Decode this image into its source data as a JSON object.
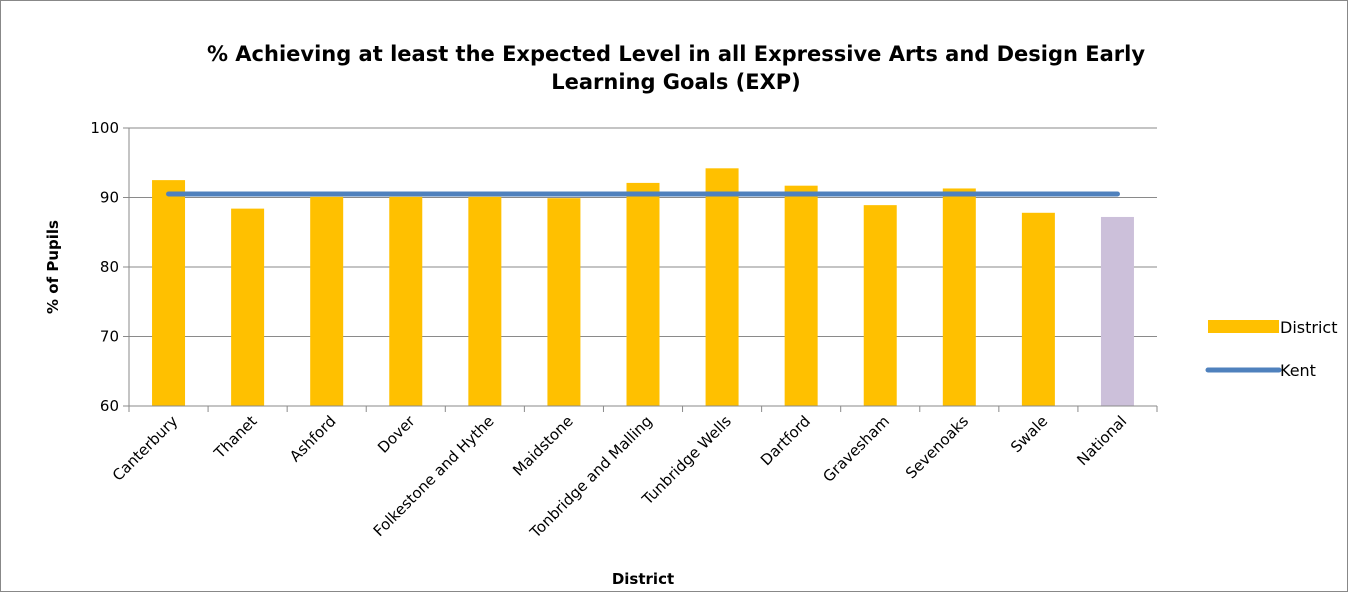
{
  "chart_data": {
    "type": "bar",
    "title_lines": [
      "% Achieving at least the Expected Level in all Expressive Arts and Design Early",
      "Learning Goals (EXP)"
    ],
    "xlabel": "District",
    "ylabel": "% of Pupils",
    "ylim": [
      60,
      100
    ],
    "yticks": [
      "100",
      "90",
      "80",
      "70",
      "60"
    ],
    "grid": true,
    "legend_position": "right",
    "categories": [
      "Canterbury",
      "Thanet",
      "Ashford",
      "Dover",
      "Folkestone and Hythe",
      "Maidstone",
      "Tonbridge and Malling",
      "Tunbridge Wells",
      "Dartford",
      "Gravesham",
      "Sevenoaks",
      "Swale",
      "National"
    ],
    "series": [
      {
        "name": "District",
        "kind": "bar",
        "color": "#FFC000",
        "highlight_category": "National",
        "highlight_color": "#CCC0DA",
        "values": [
          92.5,
          88.4,
          90.1,
          90.1,
          90.1,
          89.9,
          92.1,
          94.2,
          91.7,
          88.9,
          91.3,
          87.8,
          87.2
        ]
      },
      {
        "name": "Kent",
        "kind": "line",
        "color": "#4F81BD",
        "value": 90.5
      }
    ]
  }
}
